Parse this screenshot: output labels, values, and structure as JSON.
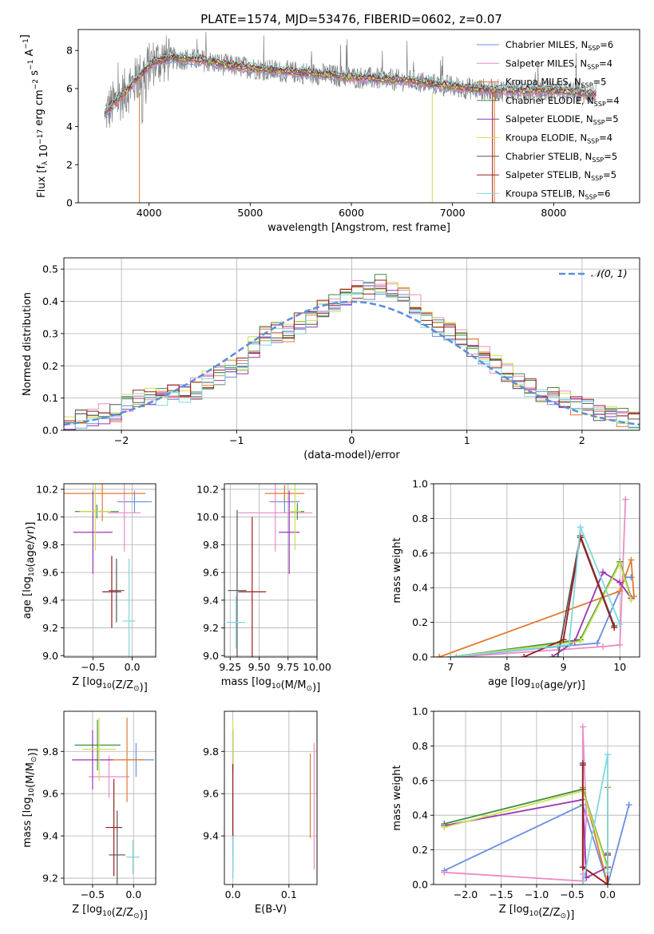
{
  "colors": {
    "Chabrier MILES": "#6a8ee0",
    "Salpeter MILES": "#e98cc6",
    "Kroupa MILES": "#e07a2e",
    "Chabrier ELODIE": "#3f8f3f",
    "Salpeter ELODIE": "#9b34b4",
    "Kroupa ELODIE": "#cde050",
    "Chabrier STELIB": "#555555",
    "Salpeter STELIB": "#9b1c1c",
    "Kroupa STELIB": "#7fd8dd",
    "data": "#7f7f7f",
    "normal": "#5b8ddb"
  },
  "chart_data": [
    {
      "type": "line",
      "title": "PLATE=1574, MJD=53476, FIBERID=0602, z=0.07",
      "xlabel": "wavelength [Angstrom, rest frame]",
      "ylabel": "Flux [f_λ 10^-17 erg cm^-2 s^-1 A^-1]",
      "xlim": [
        3300,
        8850
      ],
      "ylim": [
        0,
        9.1
      ],
      "xticks": [
        4000,
        5000,
        6000,
        7000,
        8000
      ],
      "yticks": [
        0,
        2,
        4,
        6,
        8
      ],
      "grid": false,
      "legend_position": "upper-right",
      "legend": [
        {
          "name": "Chabrier MILES",
          "sub": "SSP",
          "n": "=6"
        },
        {
          "name": "Salpeter MILES",
          "sub": "SSP",
          "n": "=4"
        },
        {
          "name": "Kroupa MILES",
          "sub": "SSP",
          "n": "=5"
        },
        {
          "name": "Chabrier ELODIE",
          "sub": "SSP",
          "n": "=4"
        },
        {
          "name": "Salpeter ELODIE",
          "sub": "SSP",
          "n": "=5"
        },
        {
          "name": "Kroupa ELODIE",
          "sub": "SSP",
          "n": "=4"
        },
        {
          "name": "Chabrier STELIB",
          "sub": "SSP",
          "n": "=5"
        },
        {
          "name": "Salpeter STELIB",
          "sub": "SSP",
          "n": "=5"
        },
        {
          "name": "Kroupa STELIB",
          "sub": "SSP",
          "n": "=6"
        }
      ],
      "model_continuum": {
        "x": [
          3550,
          3650,
          3800,
          3950,
          4050,
          4200,
          4500,
          4800,
          5000,
          5300,
          5600,
          6000,
          6300,
          6600,
          7000,
          7400,
          7700,
          8000,
          8400
        ],
        "y": [
          4.6,
          5.2,
          6.0,
          6.9,
          7.4,
          7.6,
          7.5,
          7.2,
          7.1,
          6.9,
          6.8,
          6.6,
          6.5,
          6.4,
          6.1,
          5.9,
          5.9,
          5.9,
          5.7
        ]
      }
    },
    {
      "type": "line",
      "xlabel": "(data-model)/error",
      "ylabel": "Normed distribution",
      "xlim": [
        -2.5,
        2.5
      ],
      "ylim": [
        0,
        0.535
      ],
      "xticks": [
        -2,
        -1,
        0,
        1,
        2
      ],
      "yticks": [
        0.0,
        0.1,
        0.2,
        0.3,
        0.4,
        0.5
      ],
      "grid": true,
      "legend_position": "upper-right",
      "legend": [
        {
          "name": "𝒩(0, 1)"
        }
      ],
      "histogram_bin_width": 0.1,
      "histogram_reference": [
        0.02,
        0.03,
        0.04,
        0.05,
        0.06,
        0.08,
        0.09,
        0.1,
        0.11,
        0.12,
        0.12,
        0.13,
        0.15,
        0.17,
        0.19,
        0.21,
        0.26,
        0.29,
        0.3,
        0.3,
        0.33,
        0.35,
        0.37,
        0.39,
        0.41,
        0.43,
        0.44,
        0.45,
        0.44,
        0.42,
        0.39,
        0.35,
        0.32,
        0.31,
        0.29,
        0.26,
        0.23,
        0.2,
        0.18,
        0.15,
        0.13,
        0.11,
        0.1,
        0.09,
        0.08,
        0.07,
        0.06,
        0.05,
        0.04,
        0.03
      ]
    },
    {
      "type": "scatter",
      "xlabel": "Z [log10(Z/Z⊙)]",
      "ylabel": "age  [log10(age/yr)]",
      "xlim": [
        -0.87,
        0.3
      ],
      "ylim": [
        8.99,
        10.24
      ],
      "xticks": [
        -0.5,
        -0.0
      ],
      "xticklabels": [
        "−0.5",
        "0.0"
      ],
      "yticks": [
        9.0,
        9.2,
        9.4,
        9.6,
        9.8,
        10.0,
        10.2
      ],
      "grid": true,
      "points": [
        {
          "series": "Chabrier MILES",
          "x": 0.03,
          "y": 10.11,
          "ex": 0.22,
          "ey": 0.08
        },
        {
          "series": "Salpeter MILES",
          "x": -0.1,
          "y": 10.03,
          "ex": 0.21,
          "ey": 0.28
        },
        {
          "series": "Kroupa MILES",
          "x": -0.38,
          "y": 10.17,
          "ex": 0.55,
          "ey": 0.2
        },
        {
          "series": "Chabrier ELODIE",
          "x": -0.45,
          "y": 10.04,
          "ex": 0.28,
          "ey": 0.05
        },
        {
          "series": "Salpeter ELODIE",
          "x": -0.5,
          "y": 9.89,
          "ex": 0.25,
          "ey": 0.3
        },
        {
          "series": "Kroupa ELODIE",
          "x": -0.47,
          "y": 10.04,
          "ex": 0.2,
          "ey": 0.28
        },
        {
          "series": "Chabrier STELIB",
          "x": -0.2,
          "y": 9.47,
          "ex": 0.1,
          "ey": 0.23
        },
        {
          "series": "Salpeter STELIB",
          "x": -0.26,
          "y": 9.46,
          "ex": 0.12,
          "ey": 0.26
        },
        {
          "series": "Kroupa STELIB",
          "x": -0.04,
          "y": 9.25,
          "ex": 0.08,
          "ey": 0.45
        }
      ]
    },
    {
      "type": "scatter",
      "xlabel": "mass [log10(M/M⊙)]",
      "xlim": [
        9.2,
        10.0
      ],
      "ylim": [
        8.99,
        10.24
      ],
      "xticks": [
        9.25,
        9.5,
        9.75,
        10.0
      ],
      "xticklabels": [
        "9.25",
        "9.50",
        "9.75",
        "10.00"
      ],
      "yticks": [
        9.0,
        9.2,
        9.4,
        9.6,
        9.8,
        10.0,
        10.2
      ],
      "grid": true,
      "points": [
        {
          "series": "Chabrier MILES",
          "x": 9.72,
          "y": 10.11,
          "ex": 0.13,
          "ey": 0.08
        },
        {
          "series": "Salpeter MILES",
          "x": 9.64,
          "y": 10.03,
          "ex": 0.32,
          "ey": 0.28
        },
        {
          "series": "Kroupa MILES",
          "x": 9.72,
          "y": 10.17,
          "ex": 0.17,
          "ey": 0.06
        },
        {
          "series": "Chabrier ELODIE",
          "x": 9.83,
          "y": 10.04,
          "ex": 0.06,
          "ey": 0.06
        },
        {
          "series": "Salpeter ELODIE",
          "x": 9.76,
          "y": 9.89,
          "ex": 0.09,
          "ey": 0.3
        },
        {
          "series": "Kroupa ELODIE",
          "x": 9.81,
          "y": 10.04,
          "ex": 0.05,
          "ey": 0.28
        },
        {
          "series": "Chabrier STELIB",
          "x": 9.31,
          "y": 9.47,
          "ex": 0.08,
          "ey": 0.58
        },
        {
          "series": "Salpeter STELIB",
          "x": 9.44,
          "y": 9.46,
          "ex": 0.12,
          "ey": 0.54
        },
        {
          "series": "Kroupa STELIB",
          "x": 9.3,
          "y": 9.24,
          "ex": 0.08,
          "ey": 0.19
        }
      ]
    },
    {
      "type": "line",
      "xlabel": "age  [log10(age/yr)]",
      "ylabel": "mass weight",
      "xlim": [
        6.7,
        10.35
      ],
      "ylim": [
        0,
        1
      ],
      "xticks": [
        7,
        8,
        9,
        10
      ],
      "yticks": [
        0.0,
        0.2,
        0.4,
        0.6,
        0.8,
        1.0
      ],
      "grid": true,
      "series": [
        {
          "name": "Chabrier MILES",
          "x": [
            7.0,
            8.9,
            9.6,
            10.1,
            10.2
          ],
          "y": [
            0.0,
            0.06,
            0.08,
            0.46,
            0.46
          ]
        },
        {
          "name": "Salpeter MILES",
          "x": [
            7.1,
            9.7,
            10.0,
            10.1
          ],
          "y": [
            0.0,
            0.06,
            0.07,
            0.91
          ]
        },
        {
          "name": "Kroupa MILES",
          "x": [
            6.8,
            10.0,
            10.2,
            10.25
          ],
          "y": [
            0.0,
            0.38,
            0.56,
            0.35
          ]
        },
        {
          "name": "Chabrier ELODIE",
          "x": [
            7.0,
            9.3,
            10.0,
            10.2
          ],
          "y": [
            0.0,
            0.1,
            0.55,
            0.34
          ]
        },
        {
          "name": "Salpeter ELODIE",
          "x": [
            8.8,
            9.2,
            9.7,
            10.0,
            10.2
          ],
          "y": [
            0.0,
            0.09,
            0.49,
            0.43,
            0.34
          ]
        },
        {
          "name": "Kroupa ELODIE",
          "x": [
            7.0,
            9.3,
            10.0,
            10.2
          ],
          "y": [
            0.0,
            0.09,
            0.54,
            0.33
          ]
        },
        {
          "name": "Chabrier STELIB",
          "x": [
            8.9,
            9.3,
            9.9
          ],
          "y": [
            0.0,
            0.7,
            0.18
          ]
        },
        {
          "name": "Salpeter STELIB",
          "x": [
            8.3,
            9.0,
            9.3,
            9.9
          ],
          "y": [
            0.0,
            0.1,
            0.69,
            0.17
          ]
        },
        {
          "name": "Kroupa STELIB",
          "x": [
            7.0,
            9.1,
            9.3,
            10.0
          ],
          "y": [
            0.0,
            0.07,
            0.75,
            0.19
          ]
        }
      ]
    },
    {
      "type": "scatter",
      "xlabel": "Z [log10(Z/Z⊙)]",
      "ylabel": "mass [log10(M/M⊙)]",
      "xlim": [
        -0.85,
        0.27
      ],
      "ylim": [
        9.17,
        9.99
      ],
      "xticks": [
        -0.5,
        -0.0
      ],
      "xticklabels": [
        "−0.5",
        "0.0"
      ],
      "yticks": [
        9.2,
        9.4,
        9.6,
        9.8
      ],
      "grid": true,
      "points": [
        {
          "series": "Chabrier MILES",
          "x": 0.03,
          "y": 9.76,
          "ex": 0.22,
          "ey": 0.08
        },
        {
          "series": "Salpeter MILES",
          "x": -0.3,
          "y": 9.68,
          "ex": 0.25,
          "ey": 0.1
        },
        {
          "series": "Kroupa MILES",
          "x": -0.08,
          "y": 9.76,
          "ex": 0.22,
          "ey": 0.2
        },
        {
          "series": "Chabrier ELODIE",
          "x": -0.44,
          "y": 9.83,
          "ex": 0.28,
          "ey": 0.12
        },
        {
          "series": "Salpeter ELODIE",
          "x": -0.5,
          "y": 9.76,
          "ex": 0.25,
          "ey": 0.14
        },
        {
          "series": "Kroupa ELODIE",
          "x": -0.42,
          "y": 9.81,
          "ex": 0.2,
          "ey": 0.15
        },
        {
          "series": "Chabrier STELIB",
          "x": -0.2,
          "y": 9.31,
          "ex": 0.1,
          "ey": 0.21
        },
        {
          "series": "Salpeter STELIB",
          "x": -0.24,
          "y": 9.44,
          "ex": 0.1,
          "ey": 0.23
        },
        {
          "series": "Kroupa STELIB",
          "x": -0.01,
          "y": 9.3,
          "ex": 0.08,
          "ey": 0.08
        }
      ]
    },
    {
      "type": "scatter",
      "xlabel": "E(B-V)",
      "xlim": [
        -0.015,
        0.15
      ],
      "ylim": [
        9.17,
        9.99
      ],
      "xticks": [
        0.0,
        0.1
      ],
      "xticklabels": [
        "0.0",
        "0.1"
      ],
      "yticks": [
        9.4,
        9.6,
        9.8
      ],
      "grid": true,
      "points": [
        {
          "series": "Chabrier MILES",
          "x": 0.0,
          "y": 9.6,
          "ex": 0,
          "ey": 0.3
        },
        {
          "series": "Salpeter MILES",
          "x": 0.145,
          "y": 9.54,
          "ex": 0,
          "ey": 0.3
        },
        {
          "series": "Kroupa MILES",
          "x": 0.138,
          "y": 9.59,
          "ex": 0,
          "ey": 0.2
        },
        {
          "series": "Chabrier ELODIE",
          "x": 0.0,
          "y": 9.8,
          "ex": 0,
          "ey": 0.1
        },
        {
          "series": "Salpeter ELODIE",
          "x": 0.0,
          "y": 9.8,
          "ex": 0,
          "ey": 0.1
        },
        {
          "series": "Kroupa ELODIE",
          "x": 0.0,
          "y": 9.83,
          "ex": 0,
          "ey": 0.12
        },
        {
          "series": "Chabrier STELIB",
          "x": 0.0,
          "y": 9.4,
          "ex": 0,
          "ey": 0.2
        },
        {
          "series": "Salpeter STELIB",
          "x": 0.0,
          "y": 9.56,
          "ex": 0,
          "ey": 0.18
        },
        {
          "series": "Kroupa STELIB",
          "x": 0.0,
          "y": 9.3,
          "ex": 0,
          "ey": 0.1
        }
      ]
    },
    {
      "type": "line",
      "xlabel": "Z [log10(Z/Z⊙)]",
      "ylabel": "mass weight",
      "xlim": [
        -2.45,
        0.45
      ],
      "ylim": [
        0,
        1
      ],
      "xticks": [
        -2.0,
        -1.5,
        -1.0,
        -0.5,
        0.0
      ],
      "xticklabels": [
        "−2.0",
        "−1.5",
        "−1.0",
        "−0.5",
        "0.0"
      ],
      "yticks": [
        0.0,
        0.2,
        0.4,
        0.6,
        0.8,
        1.0
      ],
      "grid": true,
      "series": [
        {
          "name": "Chabrier MILES",
          "x": [
            -2.3,
            -0.35,
            0.0,
            0.3
          ],
          "y": [
            0.08,
            0.46,
            0.0,
            0.46
          ]
        },
        {
          "name": "Salpeter MILES",
          "x": [
            -2.3,
            -0.35,
            -0.35,
            -0.3,
            -0.35
          ],
          "y": [
            0.07,
            0.02,
            0.91,
            0.4,
            0.06
          ]
        },
        {
          "name": "Kroupa MILES",
          "x": [
            -0.35,
            0.0,
            0.0
          ],
          "y": [
            0.56,
            0.0,
            0.56
          ]
        },
        {
          "name": "Chabrier ELODIE",
          "x": [
            -2.3,
            -0.35,
            0.0
          ],
          "y": [
            0.35,
            0.55,
            0.1
          ]
        },
        {
          "name": "Salpeter ELODIE",
          "x": [
            -2.3,
            -0.35,
            -0.3,
            0.0
          ],
          "y": [
            0.34,
            0.49,
            0.04,
            0.1
          ]
        },
        {
          "name": "Kroupa ELODIE",
          "x": [
            -2.3,
            -0.35,
            0.0
          ],
          "y": [
            0.33,
            0.54,
            0.09
          ]
        },
        {
          "name": "Chabrier STELIB",
          "x": [
            -0.35,
            -0.35,
            0.0,
            0.0
          ],
          "y": [
            0.7,
            0.1,
            0.0,
            0.18
          ]
        },
        {
          "name": "Salpeter STELIB",
          "x": [
            -0.35,
            -0.35,
            0.0,
            0.0
          ],
          "y": [
            0.69,
            0.1,
            0.0,
            0.17
          ]
        },
        {
          "name": "Kroupa STELIB",
          "x": [
            -0.35,
            0.0,
            0.0
          ],
          "y": [
            0.0,
            0.75,
            0.07
          ]
        }
      ]
    }
  ]
}
